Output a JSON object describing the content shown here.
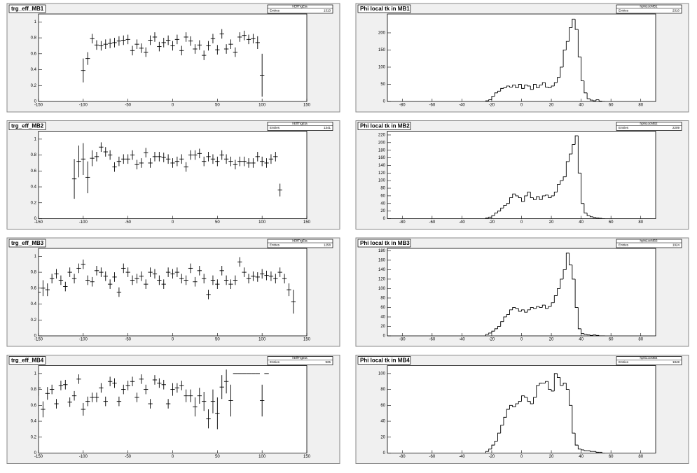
{
  "chart_data": [
    {
      "type": "scatter",
      "title": "trg_eff_MB1",
      "stats_name": "hEffTrgEta",
      "entries_label": "Entries",
      "entries": 1313,
      "x": [
        -100,
        -95,
        -90,
        -85,
        -80,
        -75,
        -70,
        -65,
        -60,
        -55,
        -50,
        -45,
        -40,
        -35,
        -30,
        -25,
        -20,
        -15,
        -10,
        -5,
        0,
        5,
        10,
        15,
        20,
        25,
        30,
        35,
        40,
        45,
        50,
        55,
        60,
        65,
        70,
        75,
        80,
        85,
        90,
        95,
        100
      ],
      "values": [
        0.39,
        0.54,
        0.79,
        0.71,
        0.7,
        0.72,
        0.73,
        0.74,
        0.76,
        0.77,
        0.78,
        0.64,
        0.72,
        0.67,
        0.62,
        0.77,
        0.81,
        0.69,
        0.74,
        0.77,
        0.7,
        0.78,
        0.64,
        0.81,
        0.76,
        0.66,
        0.71,
        0.58,
        0.7,
        0.79,
        0.65,
        0.85,
        0.66,
        0.72,
        0.62,
        0.81,
        0.83,
        0.78,
        0.79,
        0.74,
        0.33
      ],
      "errors": [
        0.15,
        0.08,
        0.06,
        0.06,
        0.06,
        0.06,
        0.06,
        0.06,
        0.06,
        0.06,
        0.06,
        0.06,
        0.06,
        0.06,
        0.06,
        0.06,
        0.06,
        0.06,
        0.06,
        0.06,
        0.06,
        0.06,
        0.06,
        0.06,
        0.06,
        0.06,
        0.06,
        0.06,
        0.06,
        0.06,
        0.06,
        0.06,
        0.06,
        0.06,
        0.06,
        0.06,
        0.06,
        0.06,
        0.06,
        0.08,
        0.27
      ],
      "xlim": [
        -150,
        150
      ],
      "ylim": [
        0,
        1.1
      ],
      "xticks": [
        -150,
        -100,
        -50,
        0,
        50,
        100,
        150
      ],
      "yticks": [
        0,
        0.2,
        0.4,
        0.6,
        0.8,
        1
      ]
    },
    {
      "type": "histogram",
      "title": "Phi local tk in MB1",
      "stats_name": "hphiLocMB1",
      "entries_label": "Entries",
      "entries": 2310,
      "bins": [
        -24,
        -22,
        -20,
        -18,
        -16,
        -14,
        -12,
        -10,
        -8,
        -6,
        -4,
        -2,
        0,
        2,
        4,
        6,
        8,
        10,
        12,
        14,
        16,
        18,
        20,
        22,
        24,
        26,
        28,
        30,
        32,
        34,
        36,
        38,
        40,
        42,
        44,
        46,
        48,
        50,
        52,
        54,
        56
      ],
      "counts": [
        2,
        5,
        15,
        25,
        30,
        38,
        40,
        45,
        42,
        48,
        40,
        50,
        38,
        48,
        45,
        35,
        50,
        40,
        48,
        55,
        42,
        40,
        45,
        55,
        70,
        100,
        150,
        175,
        215,
        240,
        210,
        130,
        60,
        25,
        8,
        4,
        2,
        5,
        1,
        0
      ],
      "xlim": [
        -90,
        90
      ],
      "ylim": [
        0,
        255
      ],
      "xticks": [
        -80,
        -60,
        -40,
        -20,
        0,
        20,
        40,
        60,
        80
      ],
      "yticks": [
        0,
        50,
        100,
        150,
        200
      ]
    },
    {
      "type": "scatter",
      "title": "trg_eff_MB2",
      "stats_name": "hEffTrgEta",
      "entries_label": "Entries",
      "entries": 1341,
      "x": [
        -110,
        -105,
        -100,
        -95,
        -90,
        -85,
        -80,
        -75,
        -70,
        -65,
        -60,
        -55,
        -50,
        -45,
        -40,
        -35,
        -30,
        -25,
        -20,
        -15,
        -10,
        -5,
        0,
        5,
        10,
        15,
        20,
        25,
        30,
        35,
        40,
        45,
        50,
        55,
        60,
        65,
        70,
        75,
        80,
        85,
        90,
        95,
        100,
        105,
        110,
        115,
        120
      ],
      "values": [
        0.5,
        0.72,
        0.75,
        0.52,
        0.76,
        0.78,
        0.9,
        0.84,
        0.8,
        0.65,
        0.72,
        0.75,
        0.75,
        0.8,
        0.68,
        0.7,
        0.83,
        0.7,
        0.78,
        0.78,
        0.77,
        0.75,
        0.7,
        0.72,
        0.75,
        0.65,
        0.8,
        0.8,
        0.82,
        0.72,
        0.78,
        0.75,
        0.72,
        0.8,
        0.75,
        0.72,
        0.68,
        0.72,
        0.72,
        0.7,
        0.7,
        0.78,
        0.72,
        0.7,
        0.75,
        0.78,
        0.36
      ],
      "errors": [
        0.25,
        0.2,
        0.2,
        0.2,
        0.1,
        0.06,
        0.06,
        0.06,
        0.06,
        0.06,
        0.06,
        0.06,
        0.06,
        0.06,
        0.06,
        0.06,
        0.06,
        0.06,
        0.06,
        0.06,
        0.06,
        0.06,
        0.06,
        0.06,
        0.06,
        0.06,
        0.06,
        0.06,
        0.06,
        0.06,
        0.06,
        0.06,
        0.06,
        0.06,
        0.06,
        0.06,
        0.06,
        0.06,
        0.06,
        0.06,
        0.06,
        0.06,
        0.06,
        0.06,
        0.06,
        0.06,
        0.08
      ],
      "xlim": [
        -150,
        150
      ],
      "ylim": [
        0,
        1.1
      ],
      "xticks": [
        -150,
        -100,
        -50,
        0,
        50,
        100,
        150
      ],
      "yticks": [
        0,
        0.2,
        0.4,
        0.6,
        0.8,
        1
      ]
    },
    {
      "type": "histogram",
      "title": "Phi local tk in MB2",
      "stats_name": "hphiLocMB2",
      "entries_label": "Entries",
      "entries": 2209,
      "bins": [
        -24,
        -22,
        -20,
        -18,
        -16,
        -14,
        -12,
        -10,
        -8,
        -6,
        -4,
        -2,
        0,
        2,
        4,
        6,
        8,
        10,
        12,
        14,
        16,
        18,
        20,
        22,
        24,
        26,
        28,
        30,
        32,
        34,
        36,
        38,
        40,
        42,
        44,
        46,
        48,
        50,
        52,
        54,
        56
      ],
      "counts": [
        2,
        4,
        8,
        15,
        20,
        28,
        35,
        40,
        55,
        65,
        60,
        55,
        45,
        60,
        70,
        55,
        50,
        58,
        50,
        60,
        62,
        55,
        60,
        70,
        90,
        100,
        110,
        150,
        170,
        195,
        218,
        120,
        40,
        15,
        8,
        5,
        3,
        2,
        1,
        0
      ],
      "xlim": [
        -90,
        90
      ],
      "ylim": [
        0,
        230
      ],
      "xticks": [
        -80,
        -60,
        -40,
        -20,
        0,
        20,
        40,
        60,
        80
      ],
      "yticks": [
        0,
        20,
        40,
        60,
        80,
        100,
        120,
        140,
        160,
        180,
        200,
        220
      ]
    },
    {
      "type": "scatter",
      "title": "trg_eff_MB3",
      "stats_name": "hEffTrgEta",
      "entries_label": "Entries",
      "entries": 1258,
      "x": [
        -150,
        -145,
        -140,
        -135,
        -130,
        -125,
        -120,
        -115,
        -110,
        -105,
        -100,
        -95,
        -90,
        -85,
        -80,
        -75,
        -70,
        -65,
        -60,
        -55,
        -50,
        -45,
        -40,
        -35,
        -30,
        -25,
        -20,
        -15,
        -10,
        -5,
        0,
        5,
        10,
        15,
        20,
        25,
        30,
        35,
        40,
        45,
        50,
        55,
        60,
        65,
        70,
        75,
        80,
        85,
        90,
        95,
        100,
        105,
        110,
        115,
        120,
        125,
        130,
        135
      ],
      "values": [
        0.55,
        0.6,
        0.58,
        0.72,
        0.78,
        0.7,
        0.62,
        0.8,
        0.72,
        0.85,
        0.9,
        0.7,
        0.68,
        0.82,
        0.8,
        0.75,
        0.65,
        0.74,
        0.55,
        0.85,
        0.8,
        0.7,
        0.72,
        0.75,
        0.65,
        0.8,
        0.78,
        0.7,
        0.65,
        0.8,
        0.78,
        0.8,
        0.72,
        0.7,
        0.85,
        0.68,
        0.82,
        0.72,
        0.52,
        0.7,
        0.65,
        0.82,
        0.7,
        0.65,
        0.7,
        0.93,
        0.8,
        0.72,
        0.75,
        0.74,
        0.78,
        0.76,
        0.75,
        0.72,
        0.8,
        0.72,
        0.58,
        0.43
      ],
      "errors": [
        0.1,
        0.1,
        0.08,
        0.06,
        0.06,
        0.06,
        0.06,
        0.06,
        0.06,
        0.06,
        0.06,
        0.06,
        0.06,
        0.06,
        0.06,
        0.06,
        0.06,
        0.06,
        0.06,
        0.06,
        0.06,
        0.06,
        0.06,
        0.06,
        0.06,
        0.06,
        0.06,
        0.06,
        0.06,
        0.06,
        0.06,
        0.06,
        0.06,
        0.06,
        0.06,
        0.06,
        0.06,
        0.06,
        0.06,
        0.06,
        0.06,
        0.06,
        0.06,
        0.06,
        0.06,
        0.06,
        0.06,
        0.06,
        0.06,
        0.06,
        0.06,
        0.06,
        0.06,
        0.06,
        0.06,
        0.06,
        0.08,
        0.15
      ],
      "xlim": [
        -150,
        150
      ],
      "ylim": [
        0,
        1.1
      ],
      "xticks": [
        -150,
        -100,
        -50,
        0,
        50,
        100,
        150
      ],
      "yticks": [
        0,
        0.2,
        0.4,
        0.6,
        0.8,
        1
      ]
    },
    {
      "type": "histogram",
      "title": "Phi local tk in MB3",
      "stats_name": "hphiLocMB3",
      "entries_label": "Entries",
      "entries": 1924,
      "bins": [
        -24,
        -22,
        -20,
        -18,
        -16,
        -14,
        -12,
        -10,
        -8,
        -6,
        -4,
        -2,
        0,
        2,
        4,
        6,
        8,
        10,
        12,
        14,
        16,
        18,
        20,
        22,
        24,
        26,
        28,
        30,
        32,
        34,
        36,
        38,
        40,
        42,
        44,
        46,
        48,
        50,
        52,
        54,
        56
      ],
      "counts": [
        3,
        6,
        10,
        15,
        20,
        30,
        40,
        45,
        55,
        60,
        58,
        52,
        55,
        50,
        55,
        60,
        58,
        62,
        60,
        65,
        58,
        62,
        70,
        85,
        100,
        120,
        140,
        175,
        150,
        120,
        60,
        15,
        5,
        3,
        2,
        1,
        2,
        1,
        0,
        0
      ],
      "xlim": [
        -90,
        90
      ],
      "ylim": [
        0,
        185
      ],
      "xticks": [
        -80,
        -60,
        -40,
        -20,
        0,
        20,
        40,
        60,
        80
      ],
      "yticks": [
        0,
        20,
        40,
        60,
        80,
        100,
        120,
        140,
        160,
        180
      ]
    },
    {
      "type": "scatter",
      "title": "trg_eff_MB4",
      "stats_name": "hEffTrgEta",
      "entries_label": "Entries",
      "entries": 925,
      "x": [
        -150,
        -145,
        -140,
        -135,
        -130,
        -125,
        -120,
        -115,
        -110,
        -105,
        -100,
        -95,
        -90,
        -85,
        -80,
        -75,
        -70,
        -65,
        -60,
        -55,
        -50,
        -45,
        -40,
        -35,
        -30,
        -25,
        -20,
        -15,
        -10,
        -5,
        0,
        5,
        10,
        15,
        20,
        25,
        30,
        35,
        40,
        45,
        50,
        55,
        60,
        65,
        70,
        75,
        80,
        85,
        90,
        95,
        100,
        105
      ],
      "values": [
        0.82,
        0.55,
        0.75,
        0.8,
        0.62,
        0.85,
        0.86,
        0.64,
        0.72,
        0.93,
        0.55,
        0.65,
        0.7,
        0.7,
        0.82,
        0.65,
        0.9,
        0.88,
        0.65,
        0.8,
        0.85,
        0.9,
        0.7,
        0.93,
        0.8,
        0.62,
        0.92,
        0.88,
        0.86,
        0.62,
        0.8,
        0.82,
        0.85,
        0.72,
        0.72,
        0.58,
        0.72,
        0.65,
        0.43,
        0.65,
        0.5,
        0.83,
        0.9,
        0.66,
        1,
        1,
        1,
        1,
        1,
        1,
        0.66,
        1
      ],
      "errors": [
        0.1,
        0.1,
        0.08,
        0.06,
        0.06,
        0.06,
        0.06,
        0.06,
        0.06,
        0.06,
        0.08,
        0.06,
        0.06,
        0.06,
        0.06,
        0.06,
        0.06,
        0.06,
        0.06,
        0.06,
        0.06,
        0.06,
        0.06,
        0.06,
        0.06,
        0.06,
        0.06,
        0.06,
        0.06,
        0.06,
        0.08,
        0.06,
        0.06,
        0.08,
        0.08,
        0.12,
        0.1,
        0.12,
        0.12,
        0.15,
        0.2,
        0.15,
        0.15,
        0.2,
        0,
        0,
        0,
        0,
        0,
        0,
        0.2,
        0
      ],
      "xlim": [
        -150,
        150
      ],
      "ylim": [
        0,
        1.1
      ],
      "xticks": [
        -150,
        -100,
        -50,
        0,
        50,
        100,
        150
      ],
      "yticks": [
        0,
        0.2,
        0.4,
        0.6,
        0.8,
        1
      ]
    },
    {
      "type": "histogram",
      "title": "Phi local tk in MB4",
      "stats_name": "hphiLocMB4",
      "entries_label": "Entries",
      "entries": 1848,
      "bins": [
        -24,
        -22,
        -20,
        -18,
        -16,
        -14,
        -12,
        -10,
        -8,
        -6,
        -4,
        -2,
        0,
        2,
        4,
        6,
        8,
        10,
        12,
        14,
        16,
        18,
        20,
        22,
        24,
        26,
        28,
        30,
        32,
        34,
        36,
        38,
        40,
        42,
        44,
        46,
        48,
        50,
        52,
        54,
        56
      ],
      "counts": [
        2,
        5,
        10,
        15,
        25,
        35,
        45,
        55,
        60,
        58,
        62,
        65,
        72,
        70,
        65,
        62,
        70,
        85,
        88,
        88,
        90,
        80,
        78,
        100,
        95,
        85,
        88,
        80,
        60,
        25,
        10,
        5,
        4,
        3,
        3,
        2,
        2,
        1,
        1,
        0
      ],
      "xlim": [
        -90,
        90
      ],
      "ylim": [
        0,
        110
      ],
      "xticks": [
        -80,
        -60,
        -40,
        -20,
        0,
        20,
        40,
        60,
        80
      ],
      "yticks": [
        0,
        20,
        40,
        60,
        80,
        100
      ]
    }
  ]
}
